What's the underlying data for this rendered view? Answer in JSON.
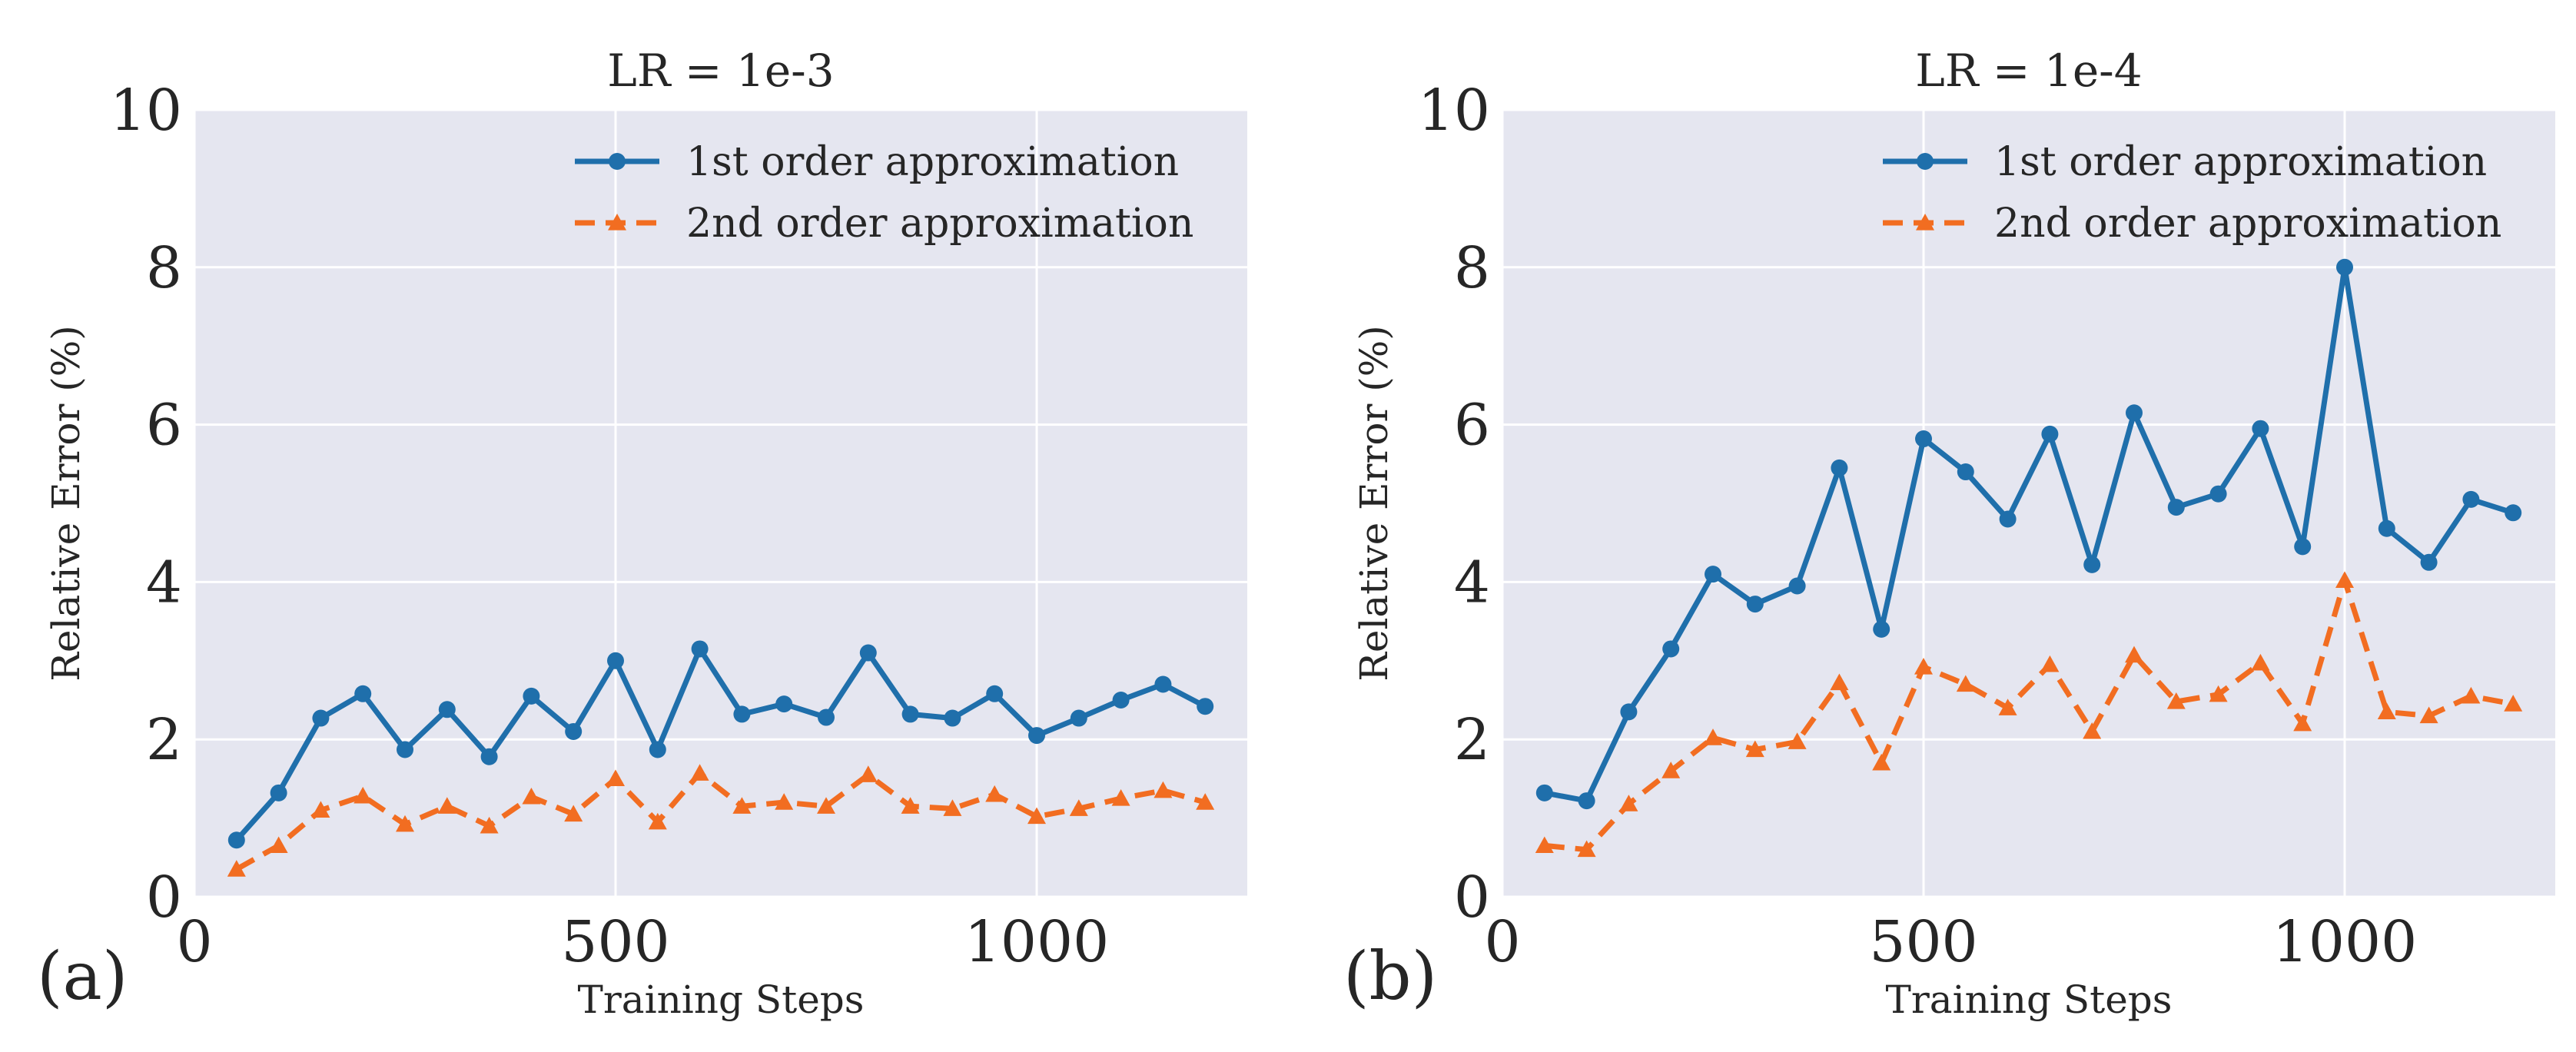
{
  "chart_data": [
    {
      "type": "line",
      "panel_label": "(a)",
      "title": "LR = 1e-3",
      "xlabel": "Training Steps",
      "ylabel": "Relative Error (%)",
      "xlim": [
        0,
        1250
      ],
      "ylim": [
        0,
        10
      ],
      "xticks": [
        0,
        500,
        1000
      ],
      "yticks": [
        0,
        2,
        4,
        6,
        8,
        10
      ],
      "grid": true,
      "legend_position": "top-right",
      "x": [
        50,
        100,
        150,
        200,
        250,
        300,
        350,
        400,
        450,
        500,
        550,
        600,
        650,
        700,
        750,
        800,
        850,
        900,
        950,
        1000,
        1050,
        1100,
        1150,
        1200
      ],
      "series": [
        {
          "name": "1st order approximation",
          "color": "#1f6fab",
          "line_style": "solid",
          "marker": "circle",
          "values": [
            0.72,
            1.32,
            2.27,
            2.58,
            1.87,
            2.38,
            1.78,
            2.55,
            2.1,
            3.0,
            1.87,
            3.15,
            2.32,
            2.45,
            2.28,
            3.1,
            2.32,
            2.27,
            2.58,
            2.05,
            2.27,
            2.5,
            2.7,
            2.42
          ]
        },
        {
          "name": "2nd order approximation",
          "color": "#f26d21",
          "line_style": "dashed",
          "marker": "triangle",
          "values": [
            0.35,
            0.65,
            1.1,
            1.28,
            0.92,
            1.15,
            0.9,
            1.27,
            1.05,
            1.5,
            0.95,
            1.57,
            1.15,
            1.2,
            1.15,
            1.55,
            1.15,
            1.12,
            1.3,
            1.02,
            1.12,
            1.25,
            1.35,
            1.2
          ]
        }
      ]
    },
    {
      "type": "line",
      "panel_label": "(b)",
      "title": "LR = 1e-4",
      "xlabel": "Training Steps",
      "ylabel": "Relative Error (%)",
      "xlim": [
        0,
        1250
      ],
      "ylim": [
        0,
        10
      ],
      "xticks": [
        0,
        500,
        1000
      ],
      "yticks": [
        0,
        2,
        4,
        6,
        8,
        10
      ],
      "grid": true,
      "legend_position": "top-right",
      "x": [
        50,
        100,
        150,
        200,
        250,
        300,
        350,
        400,
        450,
        500,
        550,
        600,
        650,
        700,
        750,
        800,
        850,
        900,
        950,
        1000,
        1050,
        1100,
        1150,
        1200
      ],
      "series": [
        {
          "name": "1st order approximation",
          "color": "#1f6fab",
          "line_style": "solid",
          "marker": "circle",
          "values": [
            1.32,
            1.22,
            2.35,
            3.15,
            4.1,
            3.72,
            3.95,
            5.45,
            3.4,
            5.82,
            5.4,
            4.8,
            5.88,
            4.22,
            6.15,
            4.95,
            5.12,
            5.95,
            4.45,
            8.0,
            4.68,
            4.25,
            5.05,
            4.88
          ]
        },
        {
          "name": "2nd order approximation",
          "color": "#f26d21",
          "line_style": "dashed",
          "marker": "triangle",
          "values": [
            0.65,
            0.6,
            1.18,
            1.6,
            2.02,
            1.87,
            1.97,
            2.72,
            1.7,
            2.92,
            2.7,
            2.4,
            2.95,
            2.1,
            3.07,
            2.48,
            2.57,
            2.97,
            2.2,
            4.02,
            2.35,
            2.3,
            2.55,
            2.45
          ]
        }
      ]
    }
  ]
}
